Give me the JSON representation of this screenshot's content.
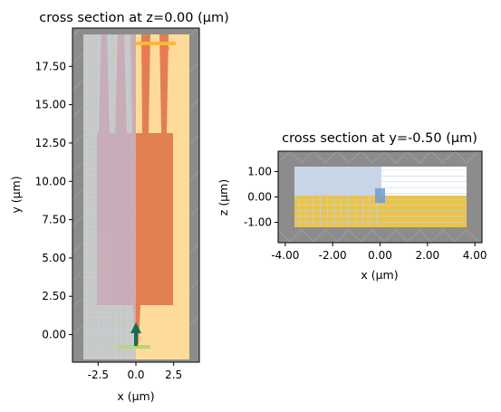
{
  "chart_data": [
    {
      "type": "other",
      "title": "cross section at z=0.00 (μm)",
      "xlabel": "x (μm)",
      "ylabel": "y (μm)",
      "xlim": [
        -4.2,
        4.2
      ],
      "ylim": [
        -1.8,
        20.0
      ],
      "xticks": [
        -2.5,
        0.0,
        2.5
      ],
      "xtick_labels": [
        "-2.5",
        "0.0",
        "2.5"
      ],
      "yticks": [
        0.0,
        2.5,
        5.0,
        7.5,
        10.0,
        12.5,
        15.0,
        17.5
      ],
      "ytick_labels": [
        "0.00",
        "2.50",
        "5.00",
        "7.50",
        "10.00",
        "12.50",
        "15.00",
        "17.50"
      ],
      "colors": {
        "substrate": "#ffdb9b",
        "waveguide": "#e27f50",
        "pml": "#8c8c8c",
        "mesh_overlay": "#c9d6e8",
        "source": "#1a6b4f",
        "monitor": "#ffb53c"
      }
    },
    {
      "type": "other",
      "title": "cross section at y=-0.50 (μm)",
      "xlabel": "x (μm)",
      "ylabel": "z (μm)",
      "xlim": [
        -4.3,
        4.3
      ],
      "ylim": [
        -1.8,
        1.8
      ],
      "xticks": [
        -4.0,
        -2.0,
        0.0,
        2.0,
        4.0
      ],
      "xtick_labels": [
        "-4.00",
        "-2.00",
        "0.00",
        "2.00",
        "4.00"
      ],
      "yticks": [
        -1.0,
        0.0,
        1.0
      ],
      "ytick_labels": [
        "-1.00",
        "0.00",
        "1.00"
      ],
      "colors": {
        "substrate": "#e9c44c",
        "pml": "#8c8c8c",
        "mesh_overlay": "#c9d6e8",
        "source": "#6e9bd4"
      }
    }
  ]
}
